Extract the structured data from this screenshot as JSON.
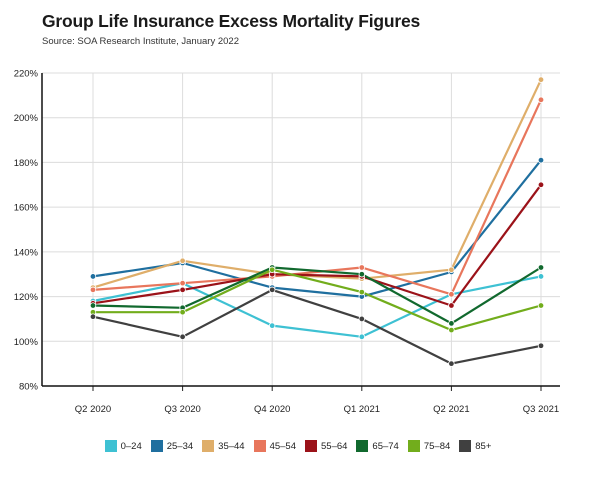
{
  "chart_data": {
    "type": "line",
    "title": "Group Life Insurance Excess Mortality Figures",
    "subtitle": "Source: SOA Research Institute, January 2022",
    "categories": [
      "Q2 2020",
      "Q3 2020",
      "Q4 2020",
      "Q1 2021",
      "Q2 2021",
      "Q3 2021"
    ],
    "yticks": [
      "80%",
      "100%",
      "120%",
      "140%",
      "160%",
      "180%",
      "200%",
      "220%"
    ],
    "ylim": [
      80,
      220
    ],
    "yunit": "%",
    "grid": true,
    "legend_position": "bottom",
    "series": [
      {
        "name": "0–24",
        "color": "#3ec1d3",
        "values": [
          118,
          126,
          107,
          102,
          121,
          129
        ]
      },
      {
        "name": "25–34",
        "color": "#1f6f9f",
        "values": [
          129,
          135,
          124,
          120,
          131,
          181
        ]
      },
      {
        "name": "35–44",
        "color": "#dfae6a",
        "values": [
          124,
          136,
          130,
          128,
          132,
          217
        ]
      },
      {
        "name": "45–54",
        "color": "#e8765c",
        "values": [
          123,
          126,
          129,
          133,
          121,
          208
        ]
      },
      {
        "name": "55–64",
        "color": "#9b1219",
        "values": [
          117,
          123,
          130,
          129,
          116,
          170
        ]
      },
      {
        "name": "65–74",
        "color": "#11692e",
        "values": [
          116,
          115,
          133,
          130,
          108,
          133
        ]
      },
      {
        "name": "75–84",
        "color": "#72ad1c",
        "values": [
          113,
          113,
          132,
          122,
          105,
          116
        ]
      },
      {
        "name": "85+",
        "color": "#404040",
        "values": [
          111,
          102,
          123,
          110,
          90,
          98
        ]
      }
    ]
  }
}
